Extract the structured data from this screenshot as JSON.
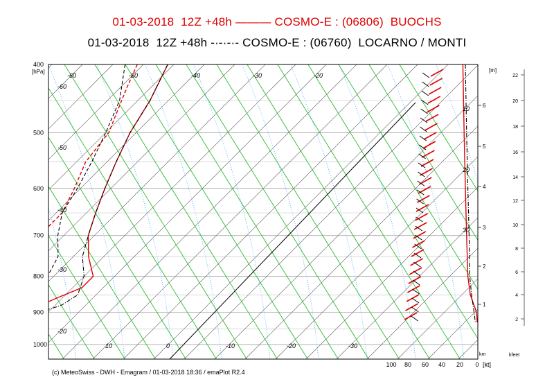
{
  "chart_data": {
    "type": "line",
    "title_line_1": "01-03-2018  12Z +48h ——— COSMO-E : (06806)  BUOCHS",
    "title_line_2": "01-03-2018  12Z +48h -·-·-·- COSMO-E : (06760)  LOCARNO / MONTI",
    "footer": "(c) MeteoSwiss - DWH - Emagram / 01-03-2018  18:36 / emaPlot R2.4",
    "pressure_unit": "[hPa]",
    "pressure_ticks": [
      400,
      500,
      600,
      700,
      800,
      900,
      1000
    ],
    "temperature_labels_bottom": [
      10,
      0,
      -10,
      -20,
      -30
    ],
    "isotherm_labels": [
      "-60",
      "-50",
      "-40",
      "-30",
      "-20",
      "-60",
      "-50",
      "-40",
      "-30",
      "-20"
    ],
    "height_unit_m": "[m]",
    "height_ticks_km": [
      1,
      2,
      3,
      4,
      5,
      6
    ],
    "height_unit_km": "km",
    "wind_unit": "[kt]",
    "wind_ticks": [
      100,
      80,
      60,
      40,
      20,
      0
    ],
    "feet_unit": "kfeet",
    "feet_ticks": [
      2,
      4,
      6,
      8,
      10,
      12,
      14,
      16,
      18,
      20,
      22
    ],
    "wind_scale_labels": [
      "10",
      "20",
      "30"
    ],
    "ylim_hPa": [
      400,
      1000
    ],
    "series": [
      {
        "name": "BUOCHS temperature",
        "station": "06806",
        "style": "solid",
        "color": "#e00000",
        "p": [
          400,
          450,
          500,
          550,
          600,
          650,
          700,
          750,
          800,
          830,
          860,
          880,
          900,
          915,
          930
        ],
        "t": [
          -46,
          -43,
          -41,
          -38.5,
          -36,
          -33.5,
          -31,
          -27.5,
          -23.5,
          -23.5,
          -26,
          -27.5,
          -28.5,
          -27,
          -26
        ]
      },
      {
        "name": "BUOCHS dewpoint",
        "station": "06806",
        "style": "dashed",
        "color": "#e00000",
        "p": [
          400,
          430,
          460,
          500,
          550,
          600,
          650,
          700,
          740,
          770,
          800,
          830,
          860,
          880,
          900
        ],
        "t": [
          -51,
          -49,
          -47,
          -44.5,
          -43.5,
          -41,
          -39,
          -39,
          -41,
          -47,
          -50,
          -47,
          -41,
          -36,
          -34
        ]
      },
      {
        "name": "LOCARNO temperature",
        "station": "06760",
        "style": "dashdot",
        "color": "#000000",
        "p": [
          400,
          450,
          500,
          550,
          600,
          650,
          700,
          750,
          800,
          850,
          880,
          900,
          930,
          950
        ],
        "t": [
          -46,
          -43,
          -41,
          -38.5,
          -36,
          -33.5,
          -31,
          -28.5,
          -25,
          -23,
          -24,
          -26.5,
          -28.5,
          -26
        ]
      },
      {
        "name": "LOCARNO dewpoint",
        "station": "06760",
        "style": "dashed",
        "color": "#000000",
        "p": [
          400,
          450,
          500,
          550,
          600,
          650,
          700,
          750,
          800,
          850,
          880,
          900,
          930,
          950
        ],
        "t": [
          -53,
          -48,
          -45,
          -42.5,
          -40.5,
          -39,
          -36,
          -32.5,
          -31,
          -30.5,
          -31.5,
          -33,
          -35,
          -35
        ]
      },
      {
        "name": "BUOCHS temperature profile (right panel)",
        "station": "06806",
        "style": "solid",
        "color": "#e00000",
        "p": [
          400,
          500,
          600,
          700,
          800,
          850,
          880,
          900,
          930
        ],
        "t": [
          12,
          11,
          10,
          9,
          8,
          6,
          3,
          1,
          0.5
        ]
      },
      {
        "name": "LOCARNO profile (right panel)",
        "station": "06760",
        "style": "dashdot",
        "color": "#000000",
        "p": [
          400,
          500,
          600,
          700,
          800,
          850,
          900,
          930
        ],
        "t": [
          10,
          9,
          8,
          7,
          6.5,
          5,
          3,
          2
        ]
      }
    ]
  },
  "colors": {
    "buochs": "#e00000",
    "locarno": "#000000",
    "dry_adiabat": "#22bb22",
    "moist_adiabat": "#33aaff",
    "isotherm": "#444444",
    "isobar": "#bbbbbb"
  }
}
